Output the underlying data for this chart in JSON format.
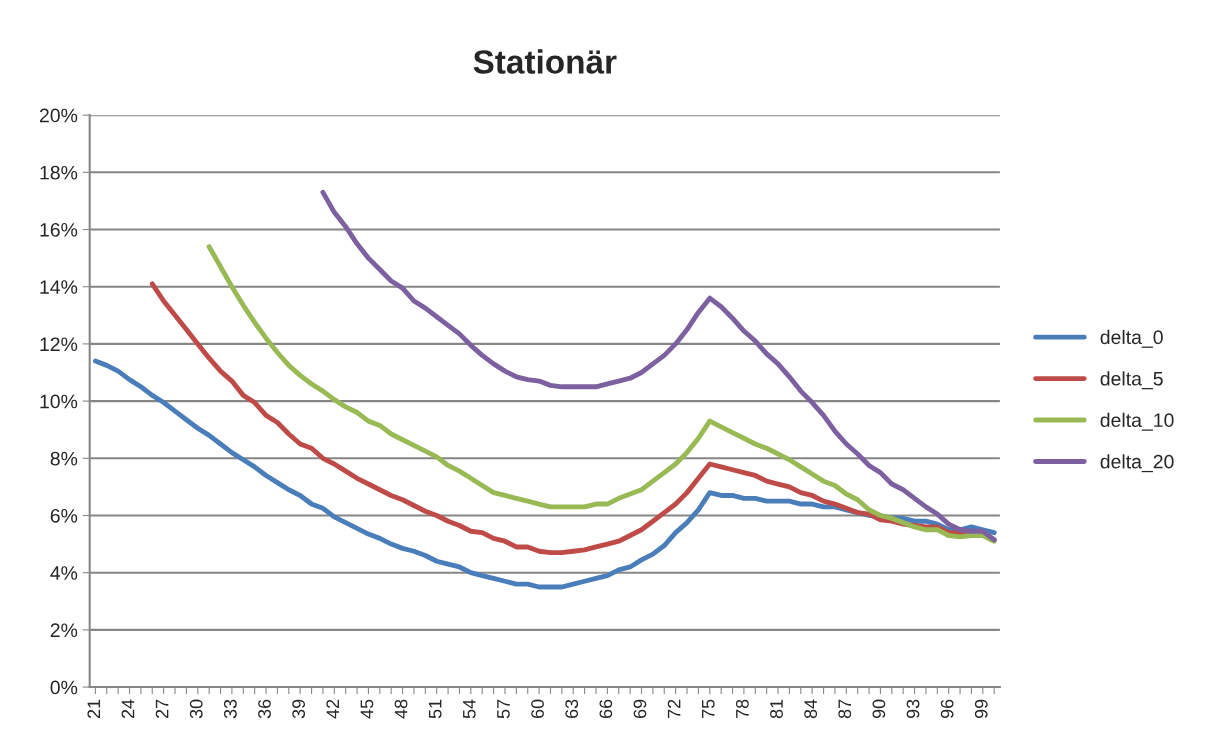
{
  "chart_data": {
    "type": "line",
    "title": "Stationär",
    "categories": [
      "21",
      null,
      null,
      "24",
      null,
      null,
      "27",
      null,
      null,
      "30",
      null,
      null,
      "33",
      null,
      null,
      "36",
      null,
      null,
      "39",
      null,
      null,
      "42",
      null,
      null,
      "45",
      null,
      null,
      "48",
      null,
      null,
      "51",
      null,
      null,
      "54",
      null,
      null,
      "57",
      null,
      null,
      "60",
      null,
      null,
      "63",
      null,
      null,
      "66",
      null,
      null,
      "69",
      null,
      null,
      "72",
      null,
      null,
      "75",
      null,
      null,
      "78",
      null,
      null,
      "81",
      null,
      null,
      "84",
      null,
      null,
      "87",
      null,
      null,
      "90",
      null,
      null,
      "93",
      null,
      null,
      "96",
      null,
      null,
      "99",
      null
    ],
    "series": [
      {
        "name": "delta_0",
        "color": "#4a7ebb",
        "values": [
          11.4,
          11.25,
          11.05,
          10.75,
          10.5,
          10.2,
          9.95,
          9.65,
          9.35,
          9.05,
          8.8,
          8.5,
          8.2,
          7.95,
          7.7,
          7.4,
          7.15,
          6.9,
          6.7,
          6.4,
          6.25,
          5.95,
          5.75,
          5.55,
          5.35,
          5.2,
          5.0,
          4.85,
          4.75,
          4.6,
          4.4,
          4.3,
          4.2,
          4.0,
          3.9,
          3.8,
          3.7,
          3.6,
          3.6,
          3.5,
          3.5,
          3.5,
          3.6,
          3.7,
          3.8,
          3.9,
          4.1,
          4.2,
          4.45,
          4.65,
          4.95,
          5.4,
          5.75,
          6.2,
          6.8,
          6.7,
          6.7,
          6.6,
          6.6,
          6.5,
          6.5,
          6.5,
          6.4,
          6.4,
          6.3,
          6.3,
          6.2,
          6.1,
          6.0,
          6.0,
          5.9,
          5.9,
          5.8,
          5.8,
          5.7,
          5.5,
          5.5,
          5.6,
          5.5,
          5.4
        ]
      },
      {
        "name": "delta_5",
        "color": "#be4b48",
        "values": [
          null,
          null,
          null,
          null,
          null,
          14.1,
          13.5,
          13.0,
          12.5,
          12.0,
          11.5,
          11.05,
          10.7,
          10.2,
          9.95,
          9.5,
          9.25,
          8.85,
          8.5,
          8.35,
          8.0,
          7.8,
          7.55,
          7.3,
          7.1,
          6.9,
          6.7,
          6.55,
          6.35,
          6.15,
          6.0,
          5.8,
          5.65,
          5.45,
          5.4,
          5.2,
          5.1,
          4.9,
          4.9,
          4.75,
          4.7,
          4.7,
          4.75,
          4.8,
          4.9,
          5.0,
          5.1,
          5.3,
          5.5,
          5.8,
          6.1,
          6.4,
          6.8,
          7.3,
          7.8,
          7.7,
          7.6,
          7.5,
          7.4,
          7.2,
          7.1,
          7.0,
          6.8,
          6.7,
          6.5,
          6.4,
          6.25,
          6.1,
          6.05,
          5.85,
          5.8,
          5.7,
          5.65,
          5.6,
          5.6,
          5.4,
          5.4,
          5.45,
          5.35,
          5.15
        ]
      },
      {
        "name": "delta_10",
        "color": "#98b954",
        "values": [
          null,
          null,
          null,
          null,
          null,
          null,
          null,
          null,
          null,
          null,
          15.4,
          14.7,
          14.0,
          13.35,
          12.75,
          12.2,
          11.7,
          11.25,
          10.9,
          10.6,
          10.35,
          10.05,
          9.8,
          9.6,
          9.3,
          9.15,
          8.85,
          8.65,
          8.45,
          8.25,
          8.05,
          7.75,
          7.55,
          7.3,
          7.05,
          6.8,
          6.7,
          6.6,
          6.5,
          6.4,
          6.3,
          6.3,
          6.3,
          6.3,
          6.4,
          6.4,
          6.6,
          6.75,
          6.9,
          7.2,
          7.5,
          7.8,
          8.2,
          8.7,
          9.3,
          9.1,
          8.9,
          8.7,
          8.5,
          8.35,
          8.15,
          7.95,
          7.7,
          7.45,
          7.2,
          7.05,
          6.75,
          6.55,
          6.2,
          6.0,
          5.9,
          5.75,
          5.6,
          5.5,
          5.5,
          5.3,
          5.25,
          5.3,
          5.3,
          5.1
        ]
      },
      {
        "name": "delta_20",
        "color": "#7d60a0",
        "values": [
          null,
          null,
          null,
          null,
          null,
          null,
          null,
          null,
          null,
          null,
          null,
          null,
          null,
          null,
          null,
          null,
          null,
          null,
          null,
          null,
          17.3,
          16.6,
          16.1,
          15.5,
          15.0,
          14.6,
          14.2,
          13.95,
          13.5,
          13.25,
          12.95,
          12.65,
          12.35,
          11.95,
          11.6,
          11.3,
          11.05,
          10.85,
          10.75,
          10.7,
          10.55,
          10.5,
          10.5,
          10.5,
          10.5,
          10.6,
          10.7,
          10.8,
          11.0,
          11.3,
          11.6,
          12.0,
          12.5,
          13.1,
          13.6,
          13.3,
          12.9,
          12.45,
          12.1,
          11.65,
          11.3,
          10.85,
          10.35,
          9.95,
          9.5,
          8.95,
          8.5,
          8.15,
          7.75,
          7.5,
          7.1,
          6.9,
          6.6,
          6.3,
          6.05,
          5.7,
          5.5,
          5.45,
          5.45,
          5.15
        ]
      }
    ],
    "ylim": [
      0,
      20
    ],
    "yticks": [
      {
        "value": 0,
        "label": "0%"
      },
      {
        "value": 2,
        "label": "2%"
      },
      {
        "value": 4,
        "label": "4%"
      },
      {
        "value": 6,
        "label": "6%"
      },
      {
        "value": 8,
        "label": "8%"
      },
      {
        "value": 10,
        "label": "10%"
      },
      {
        "value": 12,
        "label": "12%"
      },
      {
        "value": 14,
        "label": "14%"
      },
      {
        "value": 16,
        "label": "16%"
      },
      {
        "value": 18,
        "label": "18%"
      },
      {
        "value": 20,
        "label": "20%"
      }
    ],
    "grid": "y",
    "legend": "right",
    "marker": "none",
    "line_style": "solid"
  }
}
